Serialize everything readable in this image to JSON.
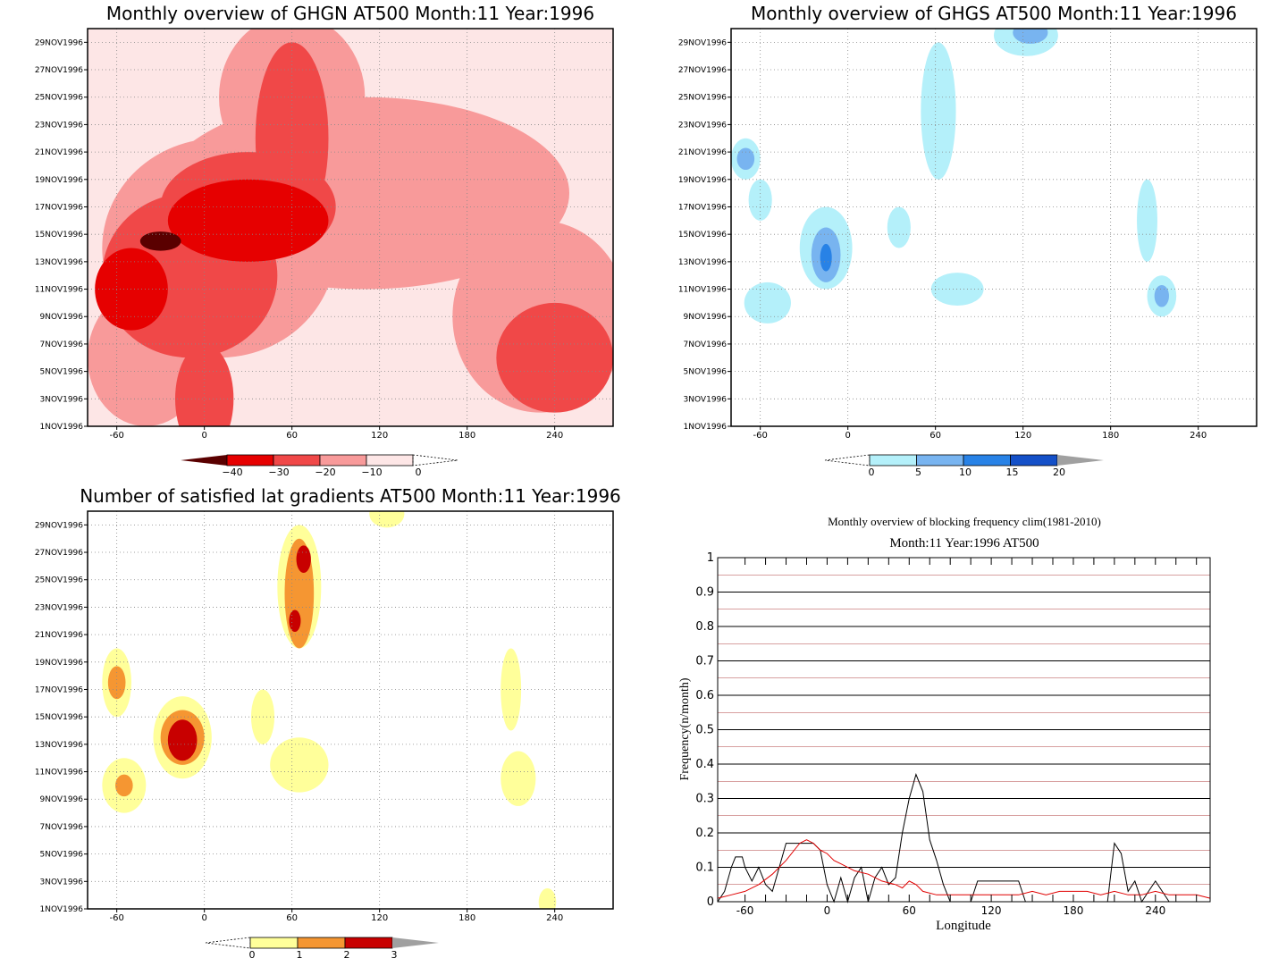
{
  "chart_data": [
    {
      "type": "heatmap",
      "title": "Monthly overview of GHGN AT500 Month:11 Year:1996",
      "x_ticks": [
        "-60",
        "0",
        "60",
        "120",
        "180",
        "240"
      ],
      "x_tick_values": [
        -60,
        0,
        60,
        120,
        180,
        240
      ],
      "xlim": [
        -80,
        280
      ],
      "y_ticks": [
        "1NOV1996",
        "3NOV1996",
        "5NOV1996",
        "7NOV1996",
        "9NOV1996",
        "11NOV1996",
        "13NOV1996",
        "15NOV1996",
        "17NOV1996",
        "19NOV1996",
        "21NOV1996",
        "23NOV1996",
        "25NOV1996",
        "27NOV1996",
        "29NOV1996"
      ],
      "ylim": [
        1,
        30
      ],
      "colorbar": {
        "labels": [
          "−40",
          "−30",
          "−20",
          "−10",
          "0"
        ],
        "colors": [
          "#5a0000",
          "#e60000",
          "#f04848",
          "#f89a9a",
          "#fde6e6"
        ]
      },
      "blobs": [
        {
          "cx": 110,
          "cy": 18,
          "rx": 140,
          "ry": 7,
          "level": 1
        },
        {
          "cx": 10,
          "cy": 14,
          "rx": 80,
          "ry": 8,
          "level": 1
        },
        {
          "cx": -40,
          "cy": 6,
          "rx": 40,
          "ry": 5,
          "level": 1
        },
        {
          "cx": 230,
          "cy": 9,
          "rx": 60,
          "ry": 7,
          "level": 1
        },
        {
          "cx": 60,
          "cy": 25,
          "rx": 50,
          "ry": 6,
          "level": 1
        },
        {
          "cx": -10,
          "cy": 12,
          "rx": 60,
          "ry": 6,
          "level": 2
        },
        {
          "cx": 30,
          "cy": 17,
          "rx": 60,
          "ry": 4,
          "level": 2
        },
        {
          "cx": 60,
          "cy": 22,
          "rx": 25,
          "ry": 7,
          "level": 2
        },
        {
          "cx": 240,
          "cy": 6,
          "rx": 40,
          "ry": 4,
          "level": 2
        },
        {
          "cx": 0,
          "cy": 3,
          "rx": 20,
          "ry": 4,
          "level": 2
        },
        {
          "cx": 30,
          "cy": 16,
          "rx": 55,
          "ry": 3,
          "level": 3
        },
        {
          "cx": -50,
          "cy": 11,
          "rx": 25,
          "ry": 3,
          "level": 3
        },
        {
          "cx": -30,
          "cy": 14.5,
          "rx": 14,
          "ry": 0.7,
          "level": 4
        }
      ]
    },
    {
      "type": "heatmap",
      "title": "Monthly overview of GHGS AT500 Month:11 Year:1996",
      "x_ticks": [
        "-60",
        "0",
        "60",
        "120",
        "180",
        "240"
      ],
      "x_tick_values": [
        -60,
        0,
        60,
        120,
        180,
        240
      ],
      "xlim": [
        -80,
        280
      ],
      "y_ticks": [
        "1NOV1996",
        "3NOV1996",
        "5NOV1996",
        "7NOV1996",
        "9NOV1996",
        "11NOV1996",
        "13NOV1996",
        "15NOV1996",
        "17NOV1996",
        "19NOV1996",
        "21NOV1996",
        "23NOV1996",
        "25NOV1996",
        "27NOV1996",
        "29NOV1996"
      ],
      "ylim": [
        1,
        30
      ],
      "colorbar": {
        "labels": [
          "0",
          "5",
          "10",
          "15",
          "20"
        ],
        "colors": [
          "#b4f0fa",
          "#78b4f0",
          "#2882e6",
          "#1450c8",
          "#a0a0a0"
        ]
      },
      "blobs": [
        {
          "cx": 62,
          "cy": 24,
          "rx": 12,
          "ry": 5,
          "level": 1
        },
        {
          "cx": 122,
          "cy": 29.5,
          "rx": 22,
          "ry": 1.5,
          "level": 1
        },
        {
          "cx": -70,
          "cy": 20.5,
          "rx": 10,
          "ry": 1.5,
          "level": 1
        },
        {
          "cx": -60,
          "cy": 17.5,
          "rx": 8,
          "ry": 1.5,
          "level": 1
        },
        {
          "cx": -15,
          "cy": 14,
          "rx": 18,
          "ry": 3,
          "level": 1
        },
        {
          "cx": -55,
          "cy": 10,
          "rx": 16,
          "ry": 1.5,
          "level": 1
        },
        {
          "cx": 35,
          "cy": 15.5,
          "rx": 8,
          "ry": 1.5,
          "level": 1
        },
        {
          "cx": 75,
          "cy": 11,
          "rx": 18,
          "ry": 1.2,
          "level": 1
        },
        {
          "cx": 205,
          "cy": 16,
          "rx": 7,
          "ry": 3,
          "level": 1
        },
        {
          "cx": 215,
          "cy": 10.5,
          "rx": 10,
          "ry": 1.5,
          "level": 1
        },
        {
          "cx": -70,
          "cy": 20.5,
          "rx": 6,
          "ry": 0.8,
          "level": 2
        },
        {
          "cx": -15,
          "cy": 13.5,
          "rx": 10,
          "ry": 2,
          "level": 2
        },
        {
          "cx": 125,
          "cy": 29.7,
          "rx": 12,
          "ry": 0.8,
          "level": 2
        },
        {
          "cx": 215,
          "cy": 10.5,
          "rx": 5,
          "ry": 0.8,
          "level": 2
        },
        {
          "cx": -15,
          "cy": 13.3,
          "rx": 4,
          "ry": 1,
          "level": 3
        }
      ]
    },
    {
      "type": "heatmap",
      "title": "Number of satisfied lat gradients AT500 Month:11 Year:1996",
      "x_ticks": [
        "-60",
        "0",
        "60",
        "120",
        "180",
        "240"
      ],
      "x_tick_values": [
        -60,
        0,
        60,
        120,
        180,
        240
      ],
      "xlim": [
        -80,
        280
      ],
      "y_ticks": [
        "1NOV1996",
        "3NOV1996",
        "5NOV1996",
        "7NOV1996",
        "9NOV1996",
        "11NOV1996",
        "13NOV1996",
        "15NOV1996",
        "17NOV1996",
        "19NOV1996",
        "21NOV1996",
        "23NOV1996",
        "25NOV1996",
        "27NOV1996",
        "29NOV1996"
      ],
      "ylim": [
        1,
        30
      ],
      "colorbar": {
        "labels": [
          "0",
          "1",
          "2",
          "3"
        ],
        "colors": [
          "#ffff9a",
          "#f59632",
          "#c80000",
          "#a0a0a0"
        ]
      },
      "blobs": [
        {
          "cx": 65,
          "cy": 24.5,
          "rx": 15,
          "ry": 4.5,
          "level": 1
        },
        {
          "cx": 125,
          "cy": 29.8,
          "rx": 12,
          "ry": 1,
          "level": 1
        },
        {
          "cx": -60,
          "cy": 17.5,
          "rx": 10,
          "ry": 2.5,
          "level": 1
        },
        {
          "cx": -15,
          "cy": 13.5,
          "rx": 20,
          "ry": 3,
          "level": 1
        },
        {
          "cx": -55,
          "cy": 10,
          "rx": 15,
          "ry": 2,
          "level": 1
        },
        {
          "cx": 65,
          "cy": 11.5,
          "rx": 20,
          "ry": 2,
          "level": 1
        },
        {
          "cx": 40,
          "cy": 15,
          "rx": 8,
          "ry": 2,
          "level": 1
        },
        {
          "cx": 210,
          "cy": 17,
          "rx": 7,
          "ry": 3,
          "level": 1
        },
        {
          "cx": 215,
          "cy": 10.5,
          "rx": 12,
          "ry": 2,
          "level": 1
        },
        {
          "cx": 235,
          "cy": 1.5,
          "rx": 6,
          "ry": 1,
          "level": 1
        },
        {
          "cx": 65,
          "cy": 24,
          "rx": 10,
          "ry": 4,
          "level": 2
        },
        {
          "cx": -15,
          "cy": 13.5,
          "rx": 15,
          "ry": 2,
          "level": 2
        },
        {
          "cx": -60,
          "cy": 17.5,
          "rx": 6,
          "ry": 1.2,
          "level": 2
        },
        {
          "cx": -55,
          "cy": 10,
          "rx": 6,
          "ry": 0.8,
          "level": 2
        },
        {
          "cx": 68,
          "cy": 26.5,
          "rx": 5,
          "ry": 1,
          "level": 3
        },
        {
          "cx": 62,
          "cy": 22,
          "rx": 4,
          "ry": 0.8,
          "level": 3
        },
        {
          "cx": -15,
          "cy": 13.3,
          "rx": 10,
          "ry": 1.5,
          "level": 3
        }
      ]
    },
    {
      "type": "line",
      "title": "Monthly overview of blocking frequency clim(1981-2010)",
      "subtitle": "Month:11 Year:1996  AT500",
      "xlabel": "Longitude",
      "ylabel": "Frequency(n/month)",
      "xlim": [
        -80,
        280
      ],
      "ylim": [
        0,
        1
      ],
      "x_ticks": [
        "-60",
        "0",
        "60",
        "120",
        "180",
        "240"
      ],
      "x_tick_values": [
        -60,
        0,
        60,
        120,
        180,
        240
      ],
      "y_ticks": [
        "0",
        "0.1",
        "0.2",
        "0.3",
        "0.4",
        "0.5",
        "0.6",
        "0.7",
        "0.8",
        "0.9",
        "1"
      ],
      "y_tick_values": [
        0,
        0.1,
        0.2,
        0.3,
        0.4,
        0.5,
        0.6,
        0.7,
        0.8,
        0.9,
        1
      ],
      "series": [
        {
          "color": "#000000",
          "x": [
            -80,
            -75,
            -70,
            -67,
            -62,
            -60,
            -55,
            -50,
            -45,
            -40,
            -35,
            -30,
            -25,
            -20,
            -15,
            -10,
            -5,
            0,
            5,
            10,
            15,
            20,
            25,
            30,
            35,
            40,
            45,
            50,
            55,
            60,
            65,
            70,
            75,
            80,
            85,
            90,
            95,
            100,
            105,
            110,
            115,
            120,
            125,
            130,
            135,
            140,
            145,
            150,
            155,
            160,
            165,
            170,
            175,
            180,
            185,
            190,
            195,
            200,
            205,
            210,
            215,
            220,
            225,
            230,
            235,
            240,
            245,
            250,
            255,
            260,
            265,
            270,
            275,
            280
          ],
          "y": [
            0,
            0.03,
            0.1,
            0.13,
            0.13,
            0.1,
            0.06,
            0.1,
            0.05,
            0.03,
            0.1,
            0.17,
            0.17,
            0.17,
            0.17,
            0.17,
            0.15,
            0.05,
            0,
            0.07,
            0,
            0.07,
            0.1,
            0,
            0.07,
            0.1,
            0.05,
            0.07,
            0.2,
            0.3,
            0.37,
            0.32,
            0.18,
            0.12,
            0.05,
            0,
            0,
            0,
            0,
            0.06,
            0.06,
            0.06,
            0.06,
            0.06,
            0.06,
            0.06,
            0,
            0,
            0,
            0,
            0,
            0,
            0,
            0,
            0,
            0,
            0,
            0,
            0,
            0.17,
            0.14,
            0.03,
            0.06,
            0,
            0.03,
            0.06,
            0.03,
            0,
            0,
            0,
            0,
            0,
            0,
            0
          ]
        },
        {
          "color": "#e00000",
          "x": [
            -80,
            -70,
            -60,
            -50,
            -40,
            -30,
            -20,
            -15,
            -10,
            -5,
            0,
            5,
            10,
            20,
            30,
            40,
            50,
            55,
            60,
            65,
            70,
            80,
            90,
            100,
            110,
            120,
            130,
            140,
            150,
            160,
            170,
            180,
            190,
            200,
            210,
            220,
            230,
            240,
            250,
            260,
            270,
            280
          ],
          "y": [
            0.01,
            0.02,
            0.03,
            0.05,
            0.08,
            0.12,
            0.17,
            0.18,
            0.17,
            0.15,
            0.14,
            0.12,
            0.11,
            0.09,
            0.08,
            0.06,
            0.05,
            0.04,
            0.06,
            0.05,
            0.03,
            0.02,
            0.02,
            0.02,
            0.02,
            0.02,
            0.02,
            0.02,
            0.03,
            0.02,
            0.03,
            0.03,
            0.03,
            0.02,
            0.03,
            0.02,
            0.02,
            0.03,
            0.02,
            0.02,
            0.02,
            0.01
          ]
        }
      ]
    }
  ]
}
